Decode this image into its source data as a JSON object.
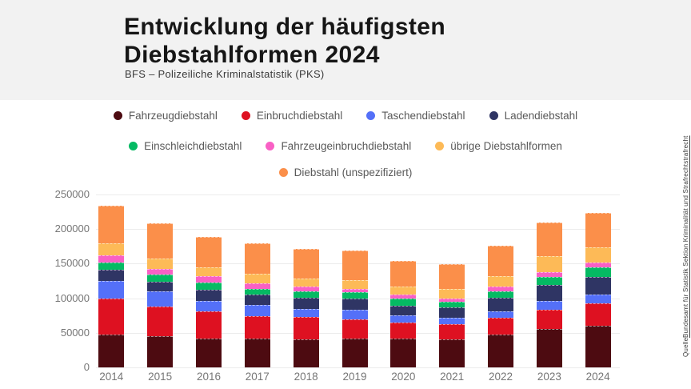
{
  "header": {
    "title": "Entwicklung der häufigsten Diebstahlformen 2024",
    "subtitle": "BFS – Polizeiliche Kriminalstatistik (PKS)"
  },
  "source": {
    "prefix": "Quelle ",
    "link_text": "Bundesamt für Statistik Sektion Kriminalität und Strafrechtstrafrecht"
  },
  "legend": {
    "rows": [
      [
        0,
        1,
        2,
        3
      ],
      [
        4,
        5,
        6
      ],
      [
        7
      ]
    ]
  },
  "chart_data": {
    "type": "bar",
    "stacked": true,
    "title": "Entwicklung der häufigsten Diebstahlformen 2024",
    "xlabel": "",
    "ylabel": "",
    "ylim": [
      0,
      250000
    ],
    "yticks": [
      0,
      50000,
      100000,
      150000,
      200000,
      250000
    ],
    "grid": true,
    "legend_position": "top",
    "categories": [
      "2014",
      "2015",
      "2016",
      "2017",
      "2018",
      "2019",
      "2020",
      "2021",
      "2022",
      "2023",
      "2024"
    ],
    "series": [
      {
        "name": "Fahrzeugdiebstahl",
        "color": "#4D0B11",
        "values": [
          47000,
          45500,
          42000,
          41500,
          40500,
          41500,
          41500,
          40500,
          47500,
          55000,
          60000
        ]
      },
      {
        "name": "Einbruchdiebstahl",
        "color": "#DE1121",
        "values": [
          52500,
          42500,
          38500,
          33000,
          32000,
          28000,
          23000,
          21500,
          24500,
          28000,
          33000
        ]
      },
      {
        "name": "Taschendiebstahl",
        "color": "#5470F8",
        "values": [
          25000,
          21500,
          16000,
          15500,
          12500,
          13500,
          11000,
          9500,
          9500,
          13500,
          12500
        ]
      },
      {
        "name": "Ladendiebstahl",
        "color": "#2F3564",
        "values": [
          17000,
          14500,
          15500,
          15500,
          16000,
          16500,
          14000,
          15500,
          19000,
          23000,
          25000
        ]
      },
      {
        "name": "Einschleichdiebstahl",
        "color": "#05BA63",
        "values": [
          10500,
          10500,
          11000,
          8500,
          9000,
          9500,
          10000,
          7500,
          10000,
          11500,
          14000
        ]
      },
      {
        "name": "Fahrzeugeinbruchdiebstahl",
        "color": "#F960C5",
        "values": [
          10000,
          8500,
          8500,
          7500,
          6500,
          5000,
          5500,
          5000,
          6500,
          7000,
          7500
        ]
      },
      {
        "name": "übrige Diebstahlformen",
        "color": "#FDBA57",
        "values": [
          18000,
          14500,
          13500,
          13500,
          11500,
          12500,
          12500,
          13500,
          14500,
          23000,
          21500
        ]
      },
      {
        "name": "Diebstahl (unspezifiziert)",
        "color": "#FB8F4A",
        "values": [
          54000,
          51000,
          44000,
          44500,
          43000,
          43000,
          37000,
          36000,
          44500,
          49000,
          49500
        ]
      }
    ]
  }
}
